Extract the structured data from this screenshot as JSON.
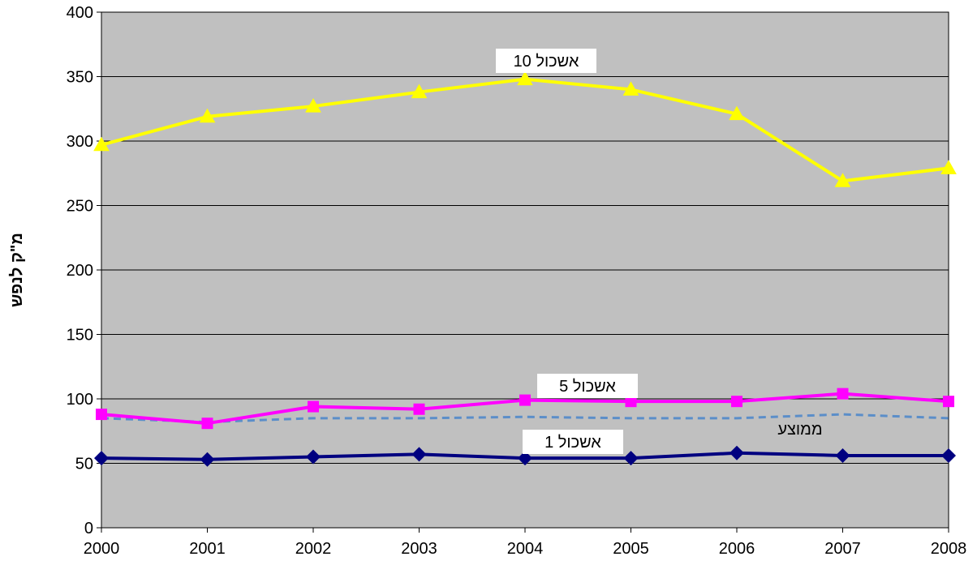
{
  "chart_data": {
    "type": "line",
    "x": [
      "2000",
      "2001",
      "2002",
      "2003",
      "2004",
      "2005",
      "2006",
      "2007",
      "2008"
    ],
    "ylabel": "מ\"ק לנפש",
    "ylim": [
      0,
      400
    ],
    "yticks": [
      "0",
      "50",
      "100",
      "150",
      "200",
      "250",
      "300",
      "350",
      "400"
    ],
    "grid": true,
    "plot_background": "#c0c0c0",
    "series": [
      {
        "name": "אשכול 10",
        "values": [
          297,
          319,
          327,
          338,
          348,
          340,
          321,
          269,
          279
        ],
        "color": "#ffff00",
        "marker": "triangle",
        "dashed": false,
        "label_box": true
      },
      {
        "name": "אשכול 5",
        "values": [
          88,
          81,
          94,
          92,
          99,
          98,
          98,
          104,
          98
        ],
        "color": "#ff00ff",
        "marker": "square",
        "dashed": false,
        "label_box": true
      },
      {
        "name": "ממוצע",
        "values": [
          85,
          82,
          85,
          85,
          86,
          85,
          85,
          88,
          85
        ],
        "color": "#5b8ec9",
        "marker": "none",
        "dashed": true,
        "label_box": false
      },
      {
        "name": "אשכול 1",
        "values": [
          54,
          53,
          55,
          57,
          54,
          54,
          58,
          56,
          56
        ],
        "color": "#000080",
        "marker": "diamond",
        "dashed": false,
        "label_box": true
      }
    ]
  }
}
